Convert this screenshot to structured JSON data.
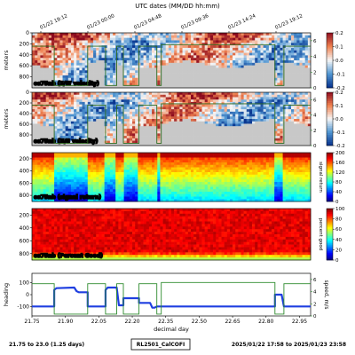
{
  "header": {
    "axis_title": "UTC dates (MM/DD hh:mm)"
  },
  "footer": {
    "range": "21.75 to 23.0 (1.25 days)",
    "cruise": "RL2501_CalCOFI",
    "dates": "2025/01/22 17:58 to 2025/01/23 23:58"
  },
  "colors": {
    "purple": "#800080",
    "heading": "#1f3fe0",
    "speed": "#2e8b2e",
    "nodata": "#c8c8c8"
  },
  "chart_data": [
    {
      "type": "heatmap",
      "panel_label": "os75nb (E/W velocity)",
      "ylabel": "meters",
      "yticks": [
        0,
        200,
        400,
        600,
        800
      ],
      "ylim": [
        1000,
        0
      ],
      "colorbar": {
        "ticks": [
          "0.2",
          "0.1",
          "0.0",
          "-0.1",
          "-0.2"
        ],
        "range": [
          -0.2,
          0.2
        ]
      },
      "right_ticks": [
        "6",
        "4",
        "2",
        "0"
      ],
      "top_dates": [
        "01/22 19:12",
        "01/23 00:00",
        "01/23 04:48",
        "01/23 09:36",
        "01/23 14:24",
        "01/23 19:12"
      ]
    },
    {
      "type": "heatmap",
      "panel_label": "os75nb (N/S velocity)",
      "ylabel": "meters",
      "yticks": [
        0,
        200,
        400,
        600,
        800
      ],
      "ylim": [
        1000,
        0
      ],
      "colorbar": {
        "ticks": [
          "0.2",
          "0.1",
          "0.0",
          "-0.1",
          "-0.2"
        ],
        "range": [
          -0.2,
          0.2
        ]
      },
      "right_ticks": [
        "6",
        "4",
        "2",
        "0"
      ]
    },
    {
      "type": "heatmap",
      "panel_label": "os75nb (signal return)",
      "yticks": [
        200,
        400,
        600,
        800
      ],
      "colorbar": {
        "label": "signal return",
        "ticks": [
          "200",
          "160",
          "120",
          "80",
          "40",
          "0"
        ],
        "range": [
          0,
          200
        ]
      }
    },
    {
      "type": "heatmap",
      "panel_label": "os75nb (Percent Good)",
      "yticks": [
        200,
        400,
        600,
        800
      ],
      "colorbar": {
        "label": "percent good",
        "ticks": [
          "100",
          "80",
          "60",
          "40",
          "20",
          "0"
        ],
        "range": [
          0,
          100
        ]
      }
    },
    {
      "type": "line",
      "xlabel": "decimal day",
      "xticks": [
        "21.75",
        "21.90",
        "22.05",
        "22.20",
        "22.35",
        "22.50",
        "22.65",
        "22.80",
        "22.95"
      ],
      "xlim": [
        21.75,
        23.0
      ],
      "left_axis": {
        "label": "heading",
        "ticks": [
          "100",
          "0",
          "-100"
        ],
        "ylim": [
          -180,
          180
        ]
      },
      "right_axis": {
        "label": "speed, m/s",
        "ticks": [
          "6",
          "4",
          "2",
          "0"
        ],
        "ylim": [
          0,
          7
        ]
      },
      "series": [
        {
          "axis": "left",
          "points": [
            [
              21.75,
              -100
            ],
            [
              21.85,
              -100
            ],
            [
              21.85,
              40
            ],
            [
              21.86,
              55
            ],
            [
              21.94,
              60
            ],
            [
              21.95,
              30
            ],
            [
              21.96,
              20
            ],
            [
              22.0,
              20
            ],
            [
              22.0,
              -100
            ],
            [
              22.08,
              -100
            ],
            [
              22.08,
              40
            ],
            [
              22.09,
              60
            ],
            [
              22.13,
              60
            ],
            [
              22.14,
              -90
            ],
            [
              22.16,
              -90
            ],
            [
              22.16,
              -30
            ],
            [
              22.23,
              -30
            ],
            [
              22.23,
              -70
            ],
            [
              22.28,
              -70
            ],
            [
              22.29,
              -110
            ],
            [
              22.3,
              -110
            ],
            [
              22.31,
              -100
            ],
            [
              22.84,
              -100
            ],
            [
              22.84,
              0
            ],
            [
              22.87,
              0
            ],
            [
              22.88,
              -100
            ],
            [
              23.0,
              -100
            ]
          ]
        },
        {
          "axis": "right",
          "points": [
            [
              21.75,
              5.3
            ],
            [
              21.85,
              5.3
            ],
            [
              21.85,
              0.3
            ],
            [
              22.0,
              0.3
            ],
            [
              22.0,
              5.3
            ],
            [
              22.08,
              5.3
            ],
            [
              22.08,
              0.3
            ],
            [
              22.13,
              0.3
            ],
            [
              22.13,
              5.3
            ],
            [
              22.16,
              5.3
            ],
            [
              22.16,
              0.3
            ],
            [
              22.23,
              0.3
            ],
            [
              22.23,
              5.3
            ],
            [
              22.31,
              5.3
            ],
            [
              22.31,
              0.3
            ],
            [
              22.33,
              0.3
            ],
            [
              22.33,
              5.5
            ],
            [
              22.84,
              5.5
            ],
            [
              22.84,
              0.3
            ],
            [
              22.88,
              0.3
            ],
            [
              22.88,
              5.3
            ],
            [
              23.0,
              5.3
            ]
          ]
        }
      ]
    }
  ]
}
